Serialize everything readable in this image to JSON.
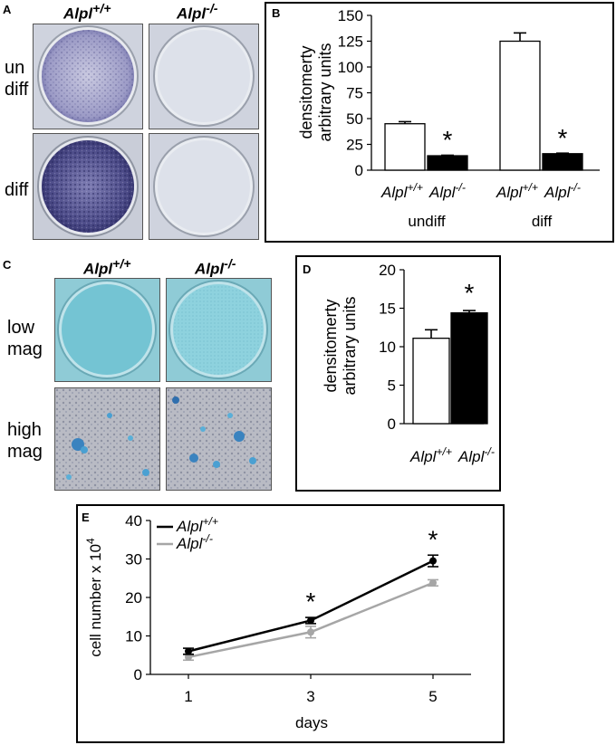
{
  "panels": {
    "a": {
      "letter": "A",
      "genotypes": [
        {
          "gene": "Alpl",
          "sup": "+/+"
        },
        {
          "gene": "Alpl",
          "sup": "-/-"
        }
      ],
      "rows": [
        {
          "line1": "un",
          "line2": "diff"
        },
        {
          "line1": "diff",
          "line2": ""
        }
      ]
    },
    "c": {
      "letter": "C",
      "genotypes": [
        {
          "gene": "Alpl",
          "sup": "+/+"
        },
        {
          "gene": "Alpl",
          "sup": "-/-"
        }
      ],
      "rows": [
        {
          "line1": "low",
          "line2": "mag"
        },
        {
          "line1": "high",
          "line2": "mag"
        }
      ]
    }
  },
  "colors": {
    "wt_bar": "#ffffff",
    "ko_bar": "#000000",
    "wt_line": "#000000",
    "ko_line": "#a6a6a6",
    "stain_purple": "#3e3d7c",
    "stain_blue": "#72c4d2"
  },
  "chart_data": [
    {
      "letter": "B",
      "type": "bar",
      "ylabel_line1": "densitomerty",
      "ylabel_line2": "arbitrary units",
      "ylim": [
        0,
        150
      ],
      "yticks": [
        0,
        25,
        50,
        75,
        100,
        125,
        150
      ],
      "groups": [
        "undiff",
        "diff"
      ],
      "series": [
        {
          "gene": "Alpl",
          "sup": "+/+",
          "values": [
            45,
            125
          ],
          "errors": [
            2,
            8
          ]
        },
        {
          "gene": "Alpl",
          "sup": "-/-",
          "values": [
            14,
            16
          ],
          "errors": [
            0.5,
            0.5
          ]
        }
      ],
      "significance": [
        "*",
        "*"
      ]
    },
    {
      "letter": "D",
      "type": "bar",
      "ylabel_line1": "densitomerty",
      "ylabel_line2": "arbitrary units",
      "ylim": [
        0,
        20
      ],
      "yticks": [
        0,
        5,
        10,
        15,
        20
      ],
      "categories": [
        {
          "gene": "Alpl",
          "sup": "+/+"
        },
        {
          "gene": "Alpl",
          "sup": "-/-"
        }
      ],
      "values": [
        11.1,
        14.4
      ],
      "errors": [
        1.1,
        0.3
      ],
      "significance": [
        "",
        "*"
      ]
    },
    {
      "letter": "E",
      "type": "line",
      "xlabel": "days",
      "ylabel": "cell number x 10",
      "ylabel_sup": "4",
      "x": [
        1,
        3,
        5
      ],
      "ylim": [
        0,
        40
      ],
      "yticks": [
        0,
        10,
        20,
        30,
        40
      ],
      "legend_position": "top-left",
      "series": [
        {
          "gene": "Alpl",
          "sup": "+/+",
          "values": [
            6,
            14,
            29.5
          ],
          "errors": [
            0.8,
            0.8,
            1.5
          ]
        },
        {
          "gene": "Alpl",
          "sup": "-/-",
          "values": [
            4.5,
            11,
            23.8
          ],
          "errors": [
            0.8,
            1.5,
            0.8
          ]
        }
      ],
      "significance": [
        "",
        "*",
        "*"
      ]
    }
  ]
}
